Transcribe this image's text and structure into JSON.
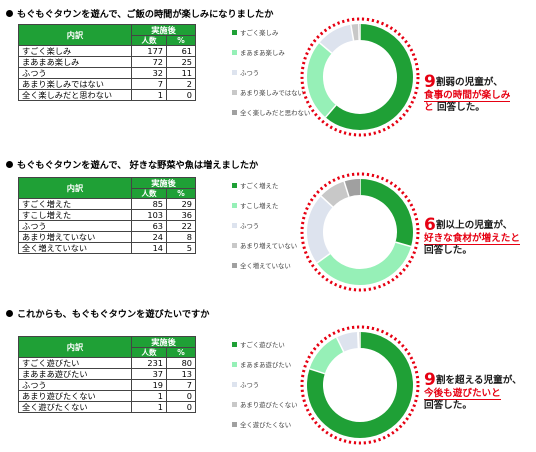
{
  "colors": {
    "green": "#1fa036",
    "mint": "#96f0b7",
    "lightgray": "#dde3ee",
    "gray": "#c8c8c8",
    "darkgray": "#a0a0a0",
    "red": "#e60012"
  },
  "table_header": {
    "label": "内訳",
    "group": "実施後",
    "count": "人数",
    "pct": "%"
  },
  "sections": [
    {
      "question": "もぐもぐタウンを遊んで、ご飯の時間が楽しみになりましたか",
      "rows": [
        {
          "label": "すごく楽しみ",
          "count": "177",
          "pct": "61"
        },
        {
          "label": "まあまあ楽しみ",
          "count": "72",
          "pct": "25"
        },
        {
          "label": "ふつう",
          "count": "32",
          "pct": "11"
        },
        {
          "label": "あまり楽しみではない",
          "count": "7",
          "pct": "2"
        },
        {
          "label": "全く楽しみだと思わない",
          "count": "1",
          "pct": "0"
        }
      ],
      "legend": [
        "すごく楽しみ",
        "まあまあ楽しみ",
        "ふつう",
        "あまり楽しみではない",
        "全く楽しみだと思わない"
      ],
      "callout": {
        "big": "9",
        "line1a": "割弱の児童が、",
        "line2": "食事の時間が楽しみ",
        "line3a": "と",
        "line3b": "回答した。"
      }
    },
    {
      "question": "もぐもぐタウンを遊んで、 好きな野菜や魚は増えましたか",
      "rows": [
        {
          "label": "すごく増えた",
          "count": "85",
          "pct": "29"
        },
        {
          "label": "すこし増えた",
          "count": "103",
          "pct": "36"
        },
        {
          "label": "ふつう",
          "count": "63",
          "pct": "22"
        },
        {
          "label": "あまり増えていない",
          "count": "24",
          "pct": "8"
        },
        {
          "label": "全く増えていない",
          "count": "14",
          "pct": "5"
        }
      ],
      "legend": [
        "すごく増えた",
        "すこし増えた",
        "ふつう",
        "あまり増えていない",
        "全く増えていない"
      ],
      "callout": {
        "big": "6",
        "line1a": "割以上の児童が、",
        "line2": "好きな食材が増えたと",
        "line3a": "",
        "line3b": "回答した。"
      }
    },
    {
      "question": "これからも、もぐもぐタウンを遊びたいですか",
      "rows": [
        {
          "label": "すごく遊びたい",
          "count": "231",
          "pct": "80"
        },
        {
          "label": "まあまあ遊びたい",
          "count": "37",
          "pct": "13"
        },
        {
          "label": "ふつう",
          "count": "19",
          "pct": "7"
        },
        {
          "label": "あまり遊びたくない",
          "count": "1",
          "pct": "0"
        },
        {
          "label": "全く遊びたくない",
          "count": "1",
          "pct": "0"
        }
      ],
      "legend": [
        "すごく遊びたい",
        "まあまあ遊びたい",
        "ふつう",
        "あまり遊びたくない",
        "全く遊びたくない"
      ],
      "callout": {
        "big": "9",
        "line1a": "割を超える児童が、",
        "line2": "今後も遊びたいと",
        "line3a": "",
        "line3b": "回答した。"
      }
    }
  ],
  "chart_data": [
    {
      "type": "pie",
      "categories": [
        "すごく楽しみ",
        "まあまあ楽しみ",
        "ふつう",
        "あまり楽しみではない",
        "全く楽しみだと思わない"
      ],
      "values": [
        177,
        72,
        32,
        7,
        1
      ],
      "percent": [
        61,
        25,
        11,
        2,
        0
      ]
    },
    {
      "type": "pie",
      "categories": [
        "すごく増えた",
        "すこし増えた",
        "ふつう",
        "あまり増えていない",
        "全く増えていない"
      ],
      "values": [
        85,
        103,
        63,
        24,
        14
      ],
      "percent": [
        29,
        36,
        22,
        8,
        5
      ]
    },
    {
      "type": "pie",
      "categories": [
        "すごく遊びたい",
        "まあまあ遊びたい",
        "ふつう",
        "あまり遊びたくない",
        "全く遊びたくない"
      ],
      "values": [
        231,
        37,
        19,
        1,
        1
      ],
      "percent": [
        80,
        13,
        7,
        0,
        0
      ]
    }
  ]
}
